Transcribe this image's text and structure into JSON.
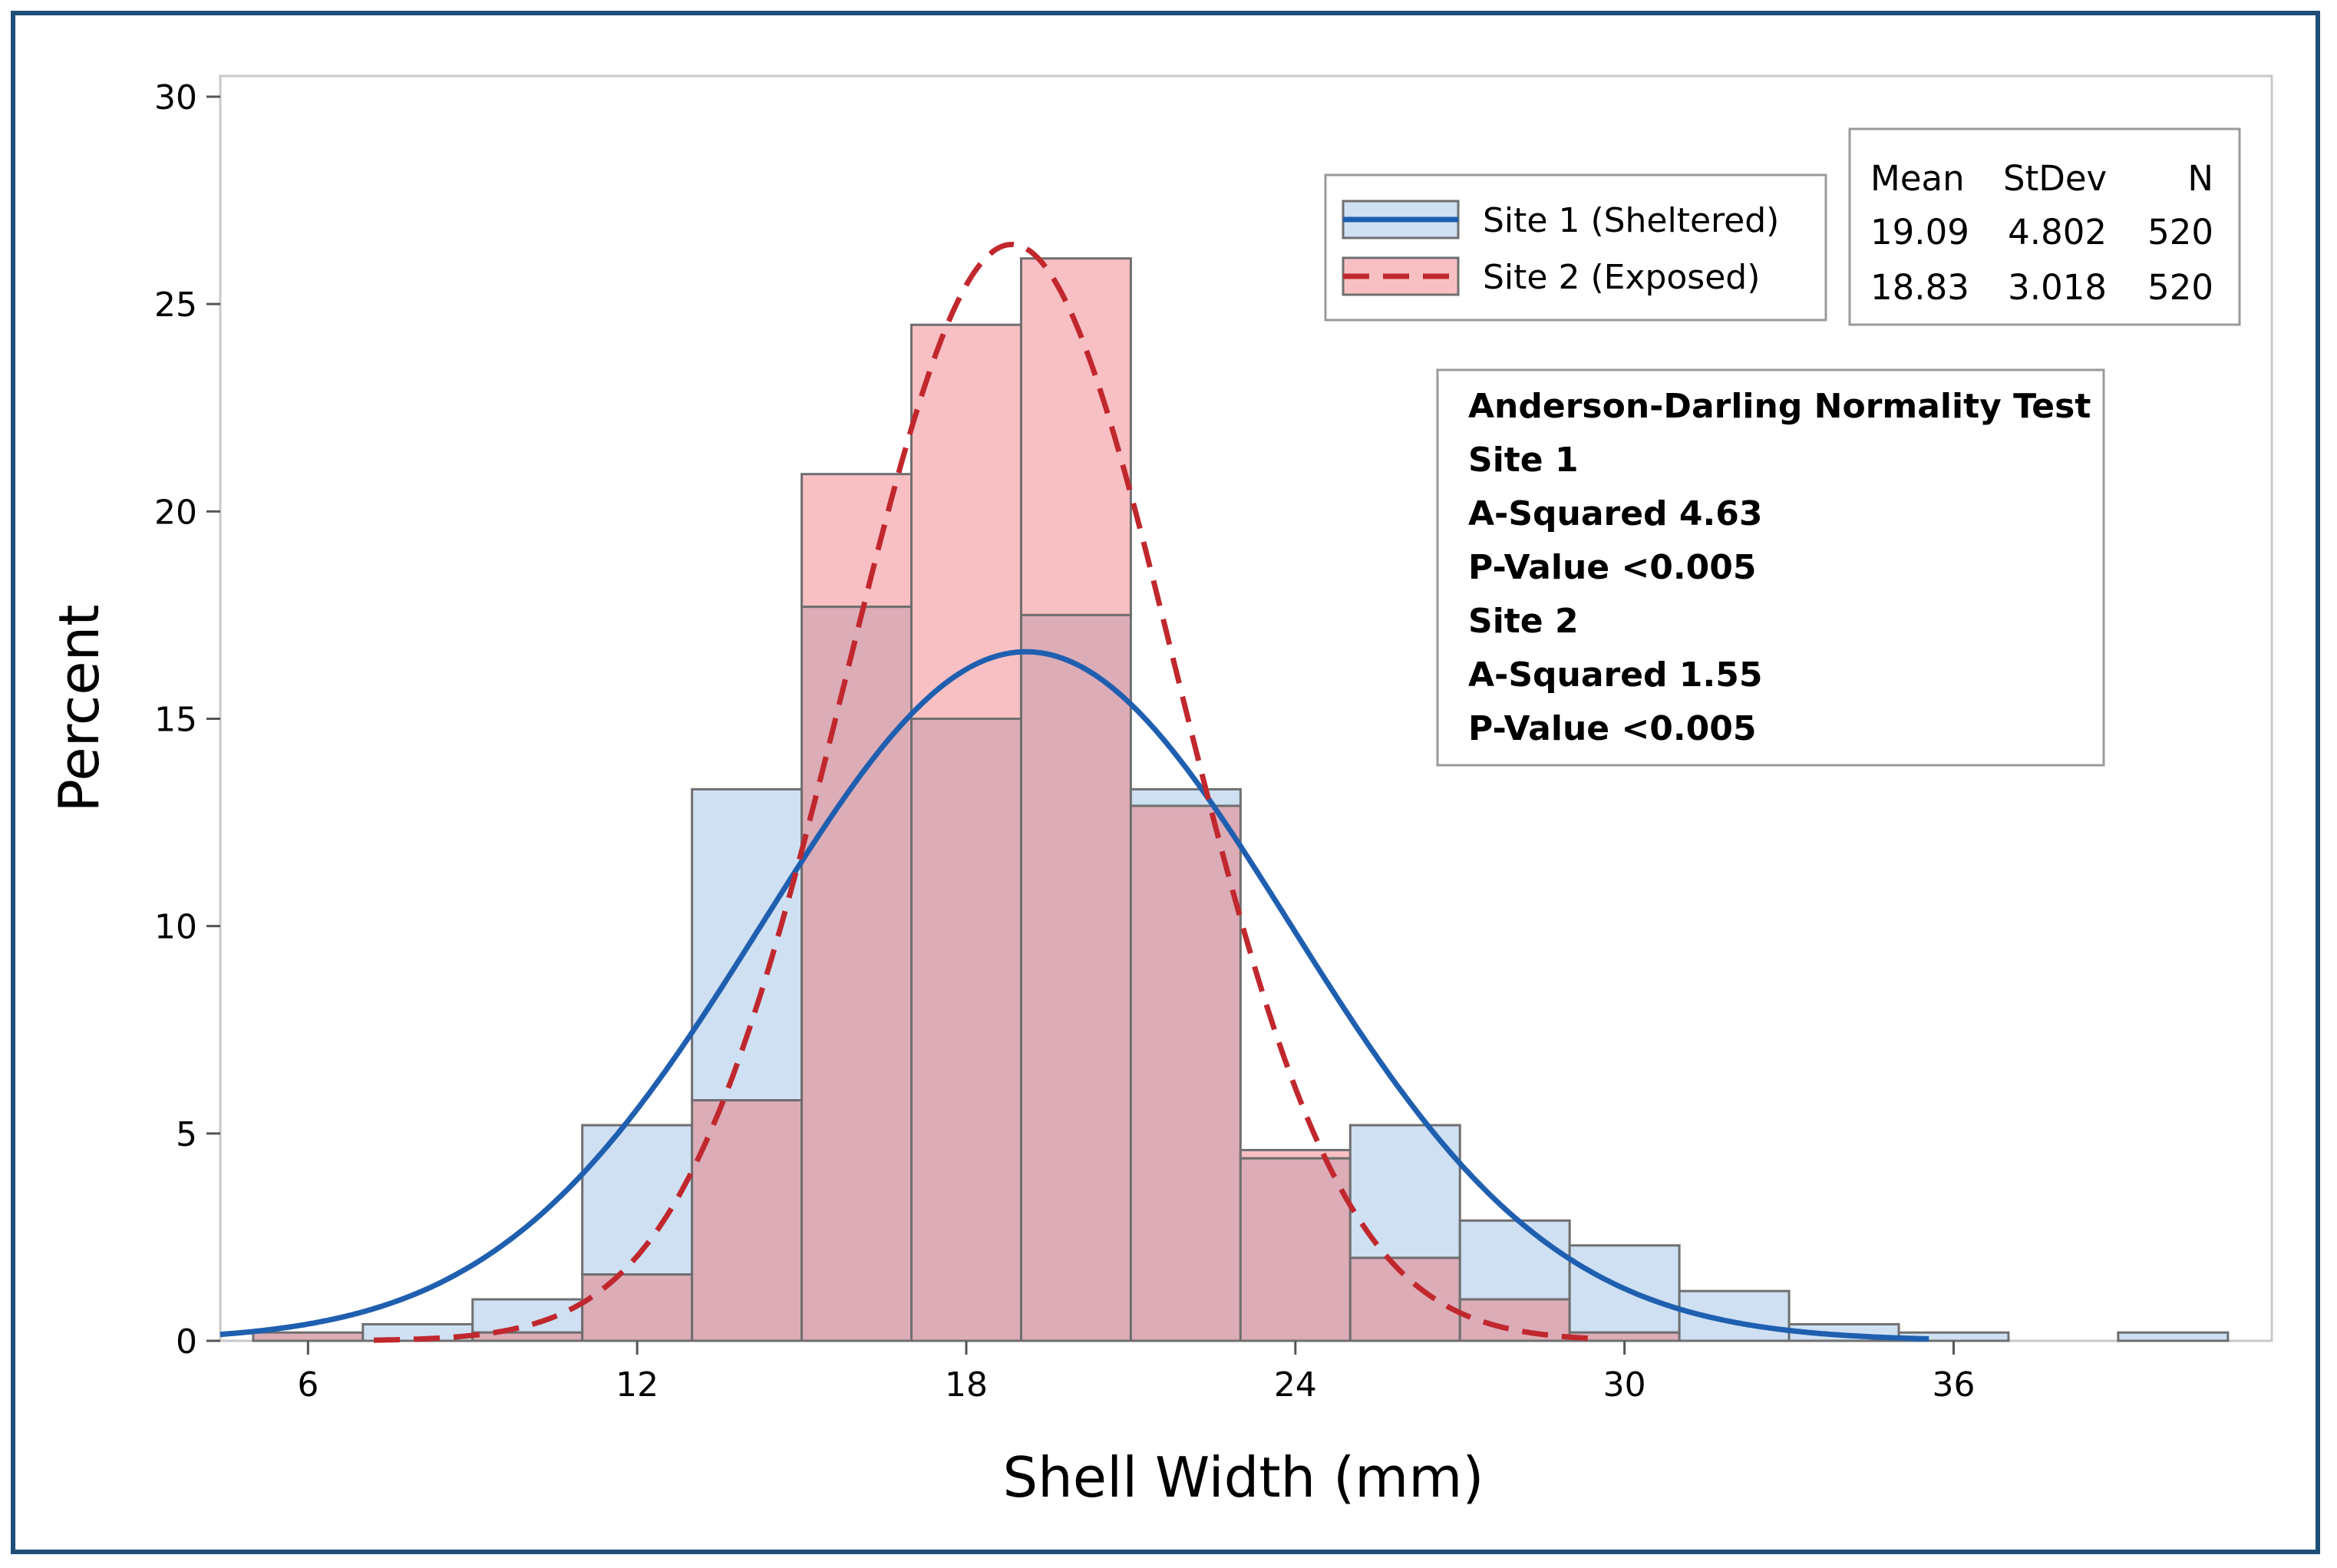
{
  "chart_data": {
    "type": "histogram",
    "xlabel": "Shell Width (mm)",
    "ylabel": "Percent",
    "xlim": [
      4.4,
      41.8
    ],
    "ylim": [
      0,
      30.5
    ],
    "xticks": [
      6,
      12,
      18,
      24,
      30,
      36
    ],
    "yticks": [
      0,
      5,
      10,
      15,
      20,
      25,
      30
    ],
    "bin_edges": [
      5,
      7,
      9,
      11,
      13,
      15,
      17,
      19,
      21,
      23,
      25,
      27,
      29,
      31,
      33,
      35,
      37,
      39,
      41
    ],
    "series": [
      {
        "name": "Site 1 (Sheltered)",
        "values": [
          0.2,
          0.4,
          1.0,
          5.2,
          13.3,
          17.7,
          15.0,
          17.5,
          13.3,
          4.4,
          5.2,
          2.9,
          2.3,
          1.2,
          0.4,
          0.2,
          0.0,
          0.2
        ],
        "mean": 19.09,
        "stdev": 4.802,
        "n": 520,
        "fill": "#cfe0f3",
        "line_color": "#1f5fb0",
        "line_style": "solid"
      },
      {
        "name": "Site 2 (Exposed)",
        "values": [
          0.2,
          0.0,
          0.2,
          1.6,
          5.8,
          20.9,
          24.5,
          26.1,
          12.9,
          4.6,
          2.0,
          1.0,
          0.2,
          0.0,
          0.0,
          0.0,
          0.0,
          0.0
        ],
        "mean": 18.83,
        "stdev": 3.018,
        "n": 520,
        "fill": "#f9c0c4",
        "line_color": "#c0282e",
        "line_style": "dashed"
      }
    ],
    "overlap_fill": "#dcacb7",
    "bin_width": 2,
    "legend_position": "top-right"
  },
  "stats_table": {
    "headers": [
      "Mean",
      "StDev",
      "N"
    ],
    "rows": [
      [
        "19.09",
        "4.802",
        "520"
      ],
      [
        "18.83",
        "3.018",
        "520"
      ]
    ]
  },
  "ad_test": {
    "lines": [
      "Anderson-Darling Normality Test",
      "Site 1",
      "A-Squared 4.63",
      "P-Value <0.005",
      "Site 2",
      "A-Squared 1.55",
      "P-Value <0.005"
    ]
  }
}
